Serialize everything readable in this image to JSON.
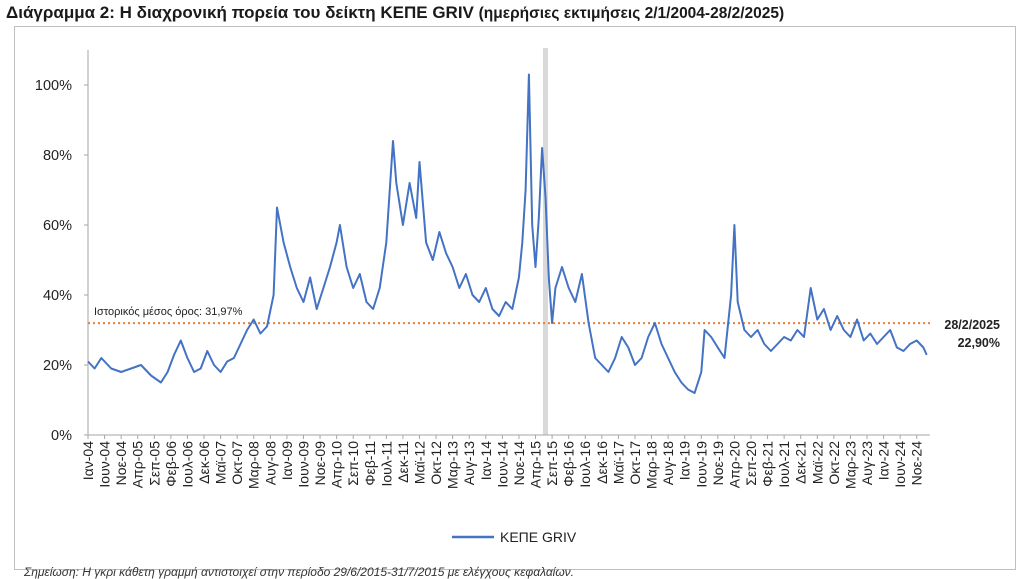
{
  "title": {
    "main": "Διάγραμμα 2: Η διαχρονική πορεία του δείκτη ΚΕΠΕ GRIV",
    "sub": "(ημερήσιες εκτιμήσεις 2/1/2004-28/2/2025)"
  },
  "chart_data": {
    "type": "line",
    "title": "Διάγραμμα 2: Η διαχρονική πορεία του δείκτη ΚΕΠΕ GRIV (ημερήσιες εκτιμήσεις 2/1/2004-28/2/2025)",
    "xlabel": "",
    "ylabel": "",
    "ylim": [
      0,
      110
    ],
    "yticks": [
      0,
      20,
      40,
      60,
      80,
      100
    ],
    "ytick_labels": [
      "0%",
      "20%",
      "40%",
      "60%",
      "80%",
      "100%"
    ],
    "grid": false,
    "legend": "bottom-center",
    "xlim": [
      "2004-01",
      "2025-03"
    ],
    "x_ticks": [
      {
        "date": "2004-01",
        "label": "Ιαν-04"
      },
      {
        "date": "2004-06",
        "label": "Ιουν-04"
      },
      {
        "date": "2004-11",
        "label": "Νοε-04"
      },
      {
        "date": "2005-04",
        "label": "Απρ-05"
      },
      {
        "date": "2005-09",
        "label": "Σεπ-05"
      },
      {
        "date": "2006-02",
        "label": "Φεβ-06"
      },
      {
        "date": "2006-07",
        "label": "Ιουλ-06"
      },
      {
        "date": "2006-12",
        "label": "Δεκ-06"
      },
      {
        "date": "2007-05",
        "label": "Μαϊ-07"
      },
      {
        "date": "2007-10",
        "label": "Οκτ-07"
      },
      {
        "date": "2008-03",
        "label": "Μαρ-08"
      },
      {
        "date": "2008-08",
        "label": "Αυγ-08"
      },
      {
        "date": "2009-01",
        "label": "Ιαν-09"
      },
      {
        "date": "2009-06",
        "label": "Ιουν-09"
      },
      {
        "date": "2009-11",
        "label": "Νοε-09"
      },
      {
        "date": "2010-04",
        "label": "Απρ-10"
      },
      {
        "date": "2010-09",
        "label": "Σεπ-10"
      },
      {
        "date": "2011-02",
        "label": "Φεβ-11"
      },
      {
        "date": "2011-07",
        "label": "Ιουλ-11"
      },
      {
        "date": "2011-12",
        "label": "Δεκ-11"
      },
      {
        "date": "2012-05",
        "label": "Μαϊ-12"
      },
      {
        "date": "2012-10",
        "label": "Οκτ-12"
      },
      {
        "date": "2013-03",
        "label": "Μαρ-13"
      },
      {
        "date": "2013-08",
        "label": "Αυγ-13"
      },
      {
        "date": "2014-01",
        "label": "Ιαν-14"
      },
      {
        "date": "2014-06",
        "label": "Ιουν-14"
      },
      {
        "date": "2014-11",
        "label": "Νοε-14"
      },
      {
        "date": "2015-04",
        "label": "Απρ-15"
      },
      {
        "date": "2015-09",
        "label": "Σεπ-15"
      },
      {
        "date": "2016-02",
        "label": "Φεβ-16"
      },
      {
        "date": "2016-07",
        "label": "Ιουλ-16"
      },
      {
        "date": "2016-12",
        "label": "Δεκ-16"
      },
      {
        "date": "2017-05",
        "label": "Μαϊ-17"
      },
      {
        "date": "2017-10",
        "label": "Οκτ-17"
      },
      {
        "date": "2018-03",
        "label": "Μαρ-18"
      },
      {
        "date": "2018-08",
        "label": "Αυγ-18"
      },
      {
        "date": "2019-01",
        "label": "Ιαν-19"
      },
      {
        "date": "2019-06",
        "label": "Ιουν-19"
      },
      {
        "date": "2019-11",
        "label": "Νοε-19"
      },
      {
        "date": "2020-04",
        "label": "Απρ-20"
      },
      {
        "date": "2020-09",
        "label": "Σεπ-20"
      },
      {
        "date": "2021-02",
        "label": "Φεβ-21"
      },
      {
        "date": "2021-07",
        "label": "Ιουλ-21"
      },
      {
        "date": "2021-12",
        "label": "Δεκ-21"
      },
      {
        "date": "2022-05",
        "label": "Μαϊ-22"
      },
      {
        "date": "2022-10",
        "label": "Οκτ-22"
      },
      {
        "date": "2023-03",
        "label": "Μαρ-23"
      },
      {
        "date": "2023-08",
        "label": "Αυγ-23"
      },
      {
        "date": "2024-01",
        "label": "Ιαν-24"
      },
      {
        "date": "2024-06",
        "label": "Ιουν-24"
      },
      {
        "date": "2024-11",
        "label": "Νοε-24"
      }
    ],
    "series": [
      {
        "name": "ΚΕΠΕ GRIV",
        "color": "#4472c4",
        "points": [
          [
            "2004-01",
            21
          ],
          [
            "2004-03",
            19
          ],
          [
            "2004-05",
            22
          ],
          [
            "2004-08",
            19
          ],
          [
            "2004-11",
            18
          ],
          [
            "2005-02",
            19
          ],
          [
            "2005-05",
            20
          ],
          [
            "2005-08",
            17
          ],
          [
            "2005-11",
            15
          ],
          [
            "2006-01",
            18
          ],
          [
            "2006-03",
            23
          ],
          [
            "2006-05",
            27
          ],
          [
            "2006-07",
            22
          ],
          [
            "2006-09",
            18
          ],
          [
            "2006-11",
            19
          ],
          [
            "2007-01",
            24
          ],
          [
            "2007-03",
            20
          ],
          [
            "2007-05",
            18
          ],
          [
            "2007-07",
            21
          ],
          [
            "2007-09",
            22
          ],
          [
            "2007-11",
            26
          ],
          [
            "2008-01",
            30
          ],
          [
            "2008-03",
            33
          ],
          [
            "2008-05",
            29
          ],
          [
            "2008-07",
            31
          ],
          [
            "2008-09",
            40
          ],
          [
            "2008-10",
            65
          ],
          [
            "2008-12",
            55
          ],
          [
            "2009-02",
            48
          ],
          [
            "2009-04",
            42
          ],
          [
            "2009-06",
            38
          ],
          [
            "2009-08",
            45
          ],
          [
            "2009-10",
            36
          ],
          [
            "2009-12",
            42
          ],
          [
            "2010-02",
            48
          ],
          [
            "2010-04",
            55
          ],
          [
            "2010-05",
            60
          ],
          [
            "2010-07",
            48
          ],
          [
            "2010-09",
            42
          ],
          [
            "2010-11",
            46
          ],
          [
            "2011-01",
            38
          ],
          [
            "2011-03",
            36
          ],
          [
            "2011-05",
            42
          ],
          [
            "2011-07",
            55
          ],
          [
            "2011-09",
            84
          ],
          [
            "2011-10",
            72
          ],
          [
            "2011-12",
            60
          ],
          [
            "2012-02",
            72
          ],
          [
            "2012-04",
            62
          ],
          [
            "2012-05",
            78
          ],
          [
            "2012-07",
            55
          ],
          [
            "2012-09",
            50
          ],
          [
            "2012-11",
            58
          ],
          [
            "2013-01",
            52
          ],
          [
            "2013-03",
            48
          ],
          [
            "2013-05",
            42
          ],
          [
            "2013-07",
            46
          ],
          [
            "2013-09",
            40
          ],
          [
            "2013-11",
            38
          ],
          [
            "2014-01",
            42
          ],
          [
            "2014-03",
            36
          ],
          [
            "2014-05",
            34
          ],
          [
            "2014-07",
            38
          ],
          [
            "2014-09",
            36
          ],
          [
            "2014-11",
            45
          ],
          [
            "2014-12",
            55
          ],
          [
            "2015-01",
            70
          ],
          [
            "2015-02",
            103
          ],
          [
            "2015-03",
            60
          ],
          [
            "2015-04",
            48
          ],
          [
            "2015-05",
            62
          ],
          [
            "2015-06",
            82
          ],
          [
            "2015-07",
            68
          ],
          [
            "2015-08",
            45
          ],
          [
            "2015-09",
            32
          ],
          [
            "2015-10",
            42
          ],
          [
            "2015-12",
            48
          ],
          [
            "2016-02",
            42
          ],
          [
            "2016-04",
            38
          ],
          [
            "2016-06",
            46
          ],
          [
            "2016-08",
            32
          ],
          [
            "2016-10",
            22
          ],
          [
            "2016-12",
            20
          ],
          [
            "2017-02",
            18
          ],
          [
            "2017-04",
            22
          ],
          [
            "2017-06",
            28
          ],
          [
            "2017-08",
            25
          ],
          [
            "2017-10",
            20
          ],
          [
            "2017-12",
            22
          ],
          [
            "2018-02",
            28
          ],
          [
            "2018-04",
            32
          ],
          [
            "2018-06",
            26
          ],
          [
            "2018-08",
            22
          ],
          [
            "2018-10",
            18
          ],
          [
            "2018-12",
            15
          ],
          [
            "2019-02",
            13
          ],
          [
            "2019-04",
            12
          ],
          [
            "2019-06",
            18
          ],
          [
            "2019-07",
            30
          ],
          [
            "2019-09",
            28
          ],
          [
            "2019-11",
            25
          ],
          [
            "2020-01",
            22
          ],
          [
            "2020-03",
            40
          ],
          [
            "2020-04",
            60
          ],
          [
            "2020-05",
            38
          ],
          [
            "2020-07",
            30
          ],
          [
            "2020-09",
            28
          ],
          [
            "2020-11",
            30
          ],
          [
            "2021-01",
            26
          ],
          [
            "2021-03",
            24
          ],
          [
            "2021-05",
            26
          ],
          [
            "2021-07",
            28
          ],
          [
            "2021-09",
            27
          ],
          [
            "2021-11",
            30
          ],
          [
            "2022-01",
            28
          ],
          [
            "2022-03",
            42
          ],
          [
            "2022-05",
            33
          ],
          [
            "2022-07",
            36
          ],
          [
            "2022-09",
            30
          ],
          [
            "2022-11",
            34
          ],
          [
            "2023-01",
            30
          ],
          [
            "2023-03",
            28
          ],
          [
            "2023-05",
            33
          ],
          [
            "2023-07",
            27
          ],
          [
            "2023-09",
            29
          ],
          [
            "2023-11",
            26
          ],
          [
            "2024-01",
            28
          ],
          [
            "2024-03",
            30
          ],
          [
            "2024-05",
            25
          ],
          [
            "2024-07",
            24
          ],
          [
            "2024-09",
            26
          ],
          [
            "2024-11",
            27
          ],
          [
            "2025-01",
            25
          ],
          [
            "2025-02",
            22.9
          ]
        ]
      }
    ],
    "reference_lines": [
      {
        "type": "horizontal",
        "value": 31.97,
        "label": "Ιστορικός μέσος όρος: 31,97%",
        "color": "#ed7d31",
        "style": "dotted"
      },
      {
        "type": "vertical",
        "date": "2015-07",
        "color": "#d9d9d9"
      }
    ],
    "annotations": [
      {
        "text": "28/2/2025",
        "date": "2025-02",
        "value": 22.9
      },
      {
        "text": "22,90%",
        "date": "2025-02",
        "value": 22.9
      }
    ]
  },
  "footer": {
    "text": "Σημείωση: Η γκρι κάθετη γραμμή αντιστοιχεί στην περίοδο 29/6/2015-31/7/2015 με ελέγχους κεφαλαίων."
  }
}
